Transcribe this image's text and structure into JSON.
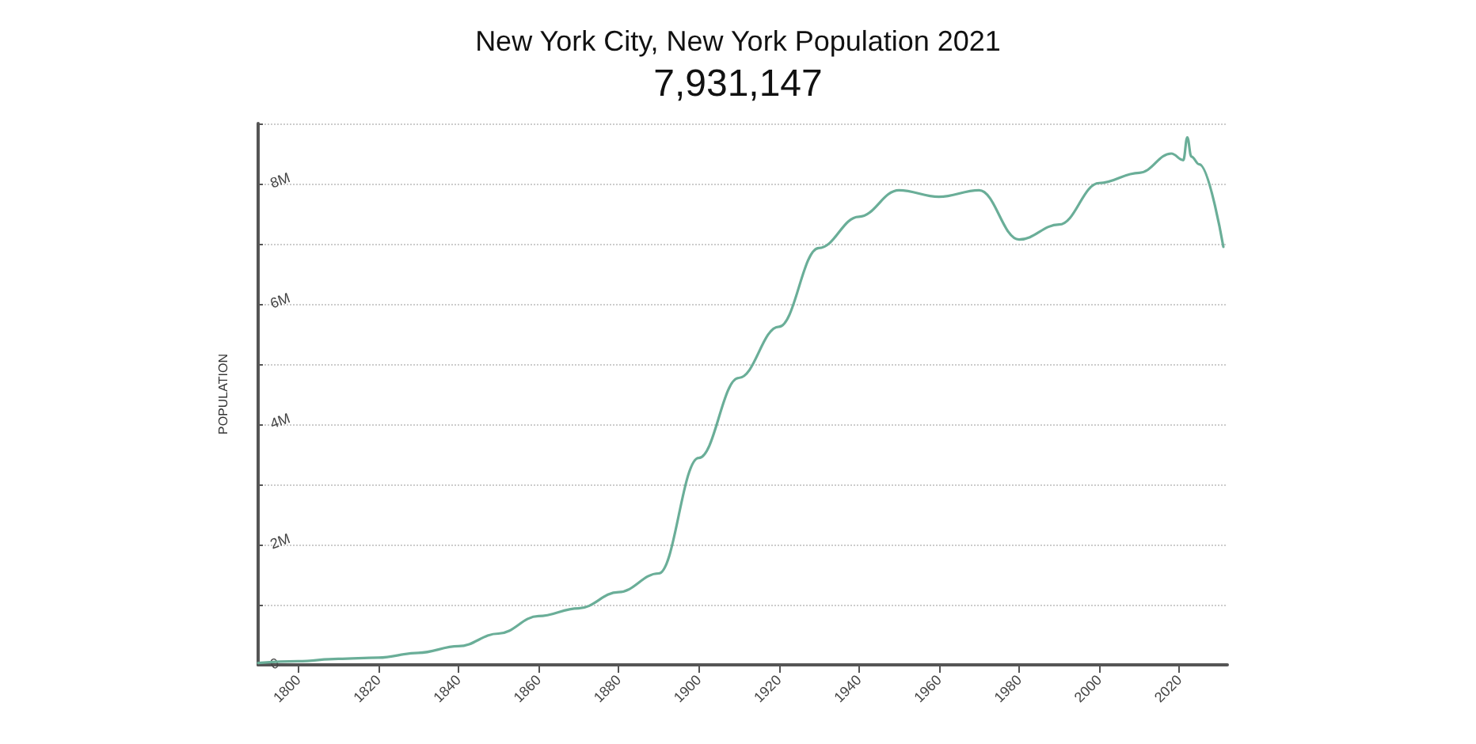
{
  "chart_data": {
    "type": "line",
    "title": "New York City, New York Population 2021",
    "subtitle": "7,931,147",
    "ylabel": "POPULATION",
    "x": [
      1790,
      1800,
      1810,
      1820,
      1830,
      1840,
      1850,
      1860,
      1870,
      1880,
      1890,
      1900,
      1910,
      1920,
      1930,
      1940,
      1950,
      1960,
      1970,
      1980,
      1990,
      2000,
      2010,
      2018,
      2021,
      2022,
      2023,
      2025,
      2031
    ],
    "series": [
      {
        "color": "#6aae98",
        "values": [
          30000,
          60000,
          100000,
          120000,
          200000,
          310000,
          520000,
          810000,
          940000,
          1210000,
          1520000,
          3440000,
          4770000,
          5620000,
          6930000,
          7450000,
          7890000,
          7780000,
          7890000,
          7070000,
          7320000,
          8010000,
          8180000,
          8500000,
          8390000,
          8770000,
          8450000,
          8320000,
          6950000
        ]
      }
    ],
    "xlim": [
      1790,
      2032
    ],
    "xticks": [
      1800,
      1820,
      1840,
      1860,
      1880,
      1900,
      1920,
      1940,
      1960,
      1980,
      2000,
      2020
    ],
    "ylim": [
      0,
      9000000
    ],
    "yticks": [
      {
        "value": 0,
        "label": "0"
      },
      {
        "value": 1000000,
        "label": null
      },
      {
        "value": 2000000,
        "label": "2M"
      },
      {
        "value": 3000000,
        "label": null
      },
      {
        "value": 4000000,
        "label": "4M"
      },
      {
        "value": 5000000,
        "label": null
      },
      {
        "value": 6000000,
        "label": "6M"
      },
      {
        "value": 7000000,
        "label": null
      },
      {
        "value": 8000000,
        "label": "8M"
      },
      {
        "value": 9000000,
        "label": null
      }
    ],
    "grid": "y",
    "marker": "none",
    "line_style": "solid"
  }
}
